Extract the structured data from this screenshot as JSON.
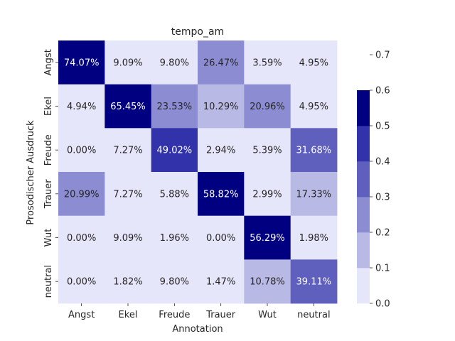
{
  "chart_data": {
    "type": "heatmap",
    "title": "tempo_am",
    "xlabel": "Annotation",
    "ylabel": "Prosodischer Ausdruck",
    "x_categories": [
      "Angst",
      "Ekel",
      "Freude",
      "Trauer",
      "Wut",
      "neutral"
    ],
    "y_categories": [
      "Angst",
      "Ekel",
      "Freude",
      "Trauer",
      "Wut",
      "neutral"
    ],
    "values": [
      [
        0.7407,
        0.0909,
        0.098,
        0.2647,
        0.0359,
        0.0495
      ],
      [
        0.0494,
        0.6545,
        0.2353,
        0.1029,
        0.2096,
        0.0495
      ],
      [
        0.0,
        0.0727,
        0.4902,
        0.0294,
        0.0539,
        0.3168
      ],
      [
        0.2099,
        0.0727,
        0.0588,
        0.5882,
        0.0299,
        0.1733
      ],
      [
        0.0,
        0.0909,
        0.0196,
        0.0,
        0.5629,
        0.0198
      ],
      [
        0.0,
        0.0182,
        0.098,
        0.0147,
        0.1078,
        0.3911
      ]
    ],
    "labels": [
      [
        "74.07%",
        "9.09%",
        "9.80%",
        "26.47%",
        "3.59%",
        "4.95%"
      ],
      [
        "4.94%",
        "65.45%",
        "23.53%",
        "10.29%",
        "20.96%",
        "4.95%"
      ],
      [
        "0.00%",
        "7.27%",
        "49.02%",
        "2.94%",
        "5.39%",
        "31.68%"
      ],
      [
        "20.99%",
        "7.27%",
        "5.88%",
        "58.82%",
        "2.99%",
        "17.33%"
      ],
      [
        "0.00%",
        "9.09%",
        "1.96%",
        "0.00%",
        "56.29%",
        "1.98%"
      ],
      [
        "0.00%",
        "1.82%",
        "9.80%",
        "1.47%",
        "10.78%",
        "39.11%"
      ]
    ],
    "colorbar": {
      "min": 0.0,
      "max": 0.74,
      "ticks": [
        "0.0",
        "0.1",
        "0.2",
        "0.3",
        "0.4",
        "0.5",
        "0.6",
        "0.7"
      ],
      "bins": [
        0,
        0.1,
        0.2,
        0.3,
        0.4,
        0.5,
        0.6,
        0.7,
        0.74
      ],
      "colors": [
        "#e6e6fa",
        "#b9b9e6",
        "#8c8cd3",
        "#5f5fbe",
        "#3232aa",
        "#000080"
      ]
    },
    "grid": false
  }
}
